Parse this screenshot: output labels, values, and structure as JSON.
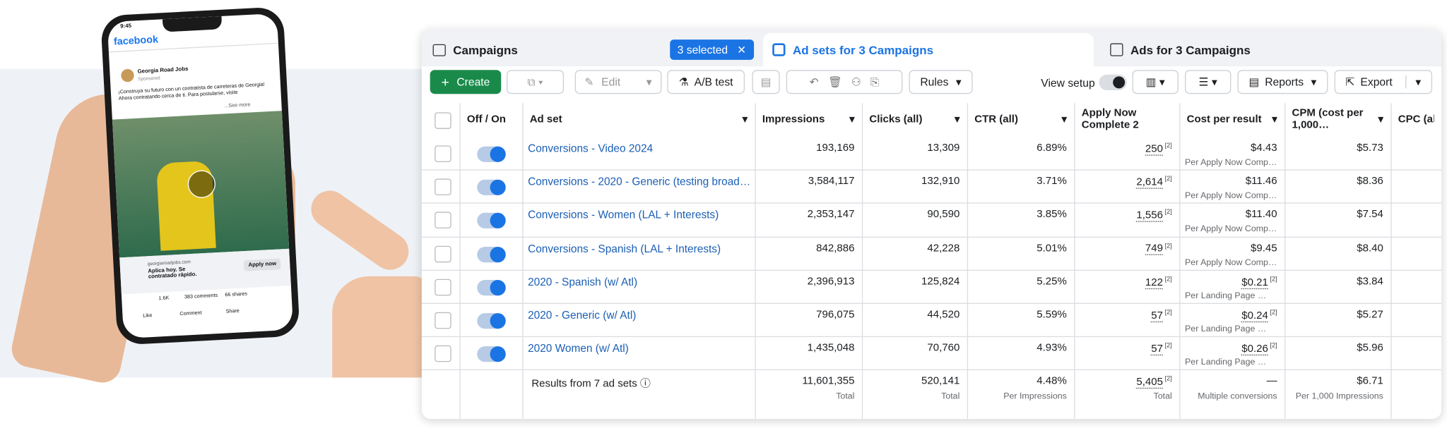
{
  "phone": {
    "time": "9:45",
    "app": "facebook",
    "page": "Georgia Road Jobs",
    "sponsored": "Sponsored",
    "text": "¡Construya su futuro con un contratista de carreteras de Georgia! Ahora contratando cerca de ti. Para postularse, visite",
    "see_more": "...See more",
    "link_domain": "georgiaroadjobs.com",
    "link_title": "Aplica hoy. Se contratado rápido.",
    "cta": "Apply now",
    "reactions": "1.6K",
    "comments": "383 comments",
    "shares": "66 shares",
    "actions": [
      "Like",
      "Comment",
      "Share"
    ]
  },
  "tabs": {
    "campaigns": "Campaigns",
    "selected": "3 selected",
    "ad_sets": "Ad sets for 3 Campaigns",
    "ads": "Ads for 3 Campaigns"
  },
  "toolbar": {
    "create": "Create",
    "edit": "Edit",
    "ab_test": "A/B test",
    "rules": "Rules",
    "view_setup": "View setup",
    "reports": "Reports",
    "export": "Export"
  },
  "table": {
    "headers": [
      "Off / On",
      "Ad set",
      "Impressions",
      "Clicks (all)",
      "CTR (all)",
      "Apply Now Complete 2",
      "Cost per result",
      "CPM (cost per 1,000…",
      "CPC (all"
    ],
    "rows": [
      {
        "name": "Conversions - Video 2024",
        "impressions": "193,169",
        "clicks": "13,309",
        "ctr": "6.89%",
        "results": "250",
        "results_note": "[2]",
        "cost": "$4.43",
        "cost_sub": "Per Apply Now Comp…",
        "cpm": "$5.73"
      },
      {
        "name": "Conversions - 2020 - Generic (testing broad…",
        "impressions": "3,584,117",
        "clicks": "132,910",
        "ctr": "3.71%",
        "results": "2,614",
        "results_note": "[2]",
        "cost": "$11.46",
        "cost_sub": "Per Apply Now Comp…",
        "cpm": "$8.36"
      },
      {
        "name": "Conversions - Women (LAL + Interests)",
        "impressions": "2,353,147",
        "clicks": "90,590",
        "ctr": "3.85%",
        "results": "1,556",
        "results_note": "[2]",
        "cost": "$11.40",
        "cost_sub": "Per Apply Now Comp…",
        "cpm": "$7.54"
      },
      {
        "name": "Conversions - Spanish (LAL + Interests)",
        "impressions": "842,886",
        "clicks": "42,228",
        "ctr": "5.01%",
        "results": "749",
        "results_note": "[2]",
        "cost": "$9.45",
        "cost_sub": "Per Apply Now Comp…",
        "cpm": "$8.40"
      },
      {
        "name": "2020 - Spanish (w/ Atl)",
        "impressions": "2,396,913",
        "clicks": "125,824",
        "ctr": "5.25%",
        "results": "122",
        "results_note": "[2]",
        "cost": "$0.21",
        "cost_note": "[2]",
        "cost_sub": "Per Landing Page …",
        "cpm": "$3.84"
      },
      {
        "name": "2020 - Generic (w/ Atl)",
        "impressions": "796,075",
        "clicks": "44,520",
        "ctr": "5.59%",
        "results": "57",
        "results_note": "[2]",
        "cost": "$0.24",
        "cost_note": "[2]",
        "cost_sub": "Per Landing Page …",
        "cpm": "$5.27"
      },
      {
        "name": "2020 Women (w/ Atl)",
        "impressions": "1,435,048",
        "clicks": "70,760",
        "ctr": "4.93%",
        "results": "57",
        "results_note": "[2]",
        "cost": "$0.26",
        "cost_note": "[2]",
        "cost_sub": "Per Landing Page …",
        "cpm": "$5.96"
      }
    ],
    "footer": {
      "label": "Results from 7 ad sets",
      "impressions": "11,601,355",
      "impressions_sub": "Total",
      "clicks": "520,141",
      "clicks_sub": "Total",
      "ctr": "4.48%",
      "ctr_sub": "Per Impressions",
      "results": "5,405",
      "results_note": "[2]",
      "results_sub": "Total",
      "cost": "—",
      "cost_sub": "Multiple conversions",
      "cpm": "$6.71",
      "cpm_sub": "Per 1,000 Impressions"
    }
  }
}
